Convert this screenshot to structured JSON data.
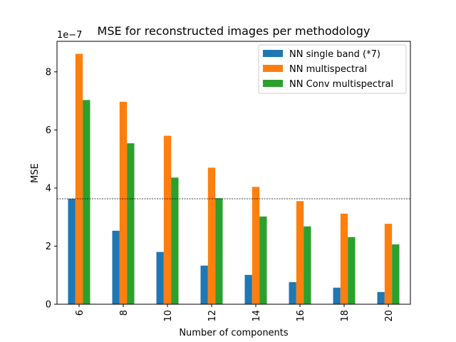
{
  "chart_data": {
    "type": "bar",
    "title": "MSE for reconstructed images per methodology",
    "xlabel": "Number of components",
    "ylabel": "MSE",
    "y_offset_label": "1e−7",
    "y_scale": 1e-07,
    "ylim": [
      0,
      9.05
    ],
    "yticks": [
      0,
      2,
      4,
      6,
      8
    ],
    "categories": [
      "6",
      "8",
      "10",
      "12",
      "14",
      "16",
      "18",
      "20"
    ],
    "series": [
      {
        "name": "NN single band (*7)",
        "color": "#1f77b4",
        "values": [
          3.63,
          2.53,
          1.8,
          1.33,
          1.01,
          0.76,
          0.57,
          0.42
        ]
      },
      {
        "name": "NN multispectral",
        "color": "#ff7f0e",
        "values": [
          8.62,
          6.97,
          5.8,
          4.7,
          4.04,
          3.55,
          3.12,
          2.77
        ]
      },
      {
        "name": "NN Conv multispectral",
        "color": "#2ca02c",
        "values": [
          7.03,
          5.54,
          4.36,
          3.65,
          3.02,
          2.68,
          2.31,
          2.06
        ]
      }
    ],
    "reference_line": {
      "value": 3.63,
      "style": "dashed",
      "color": "#000000"
    },
    "legend_position": "top-right",
    "grid": false
  }
}
